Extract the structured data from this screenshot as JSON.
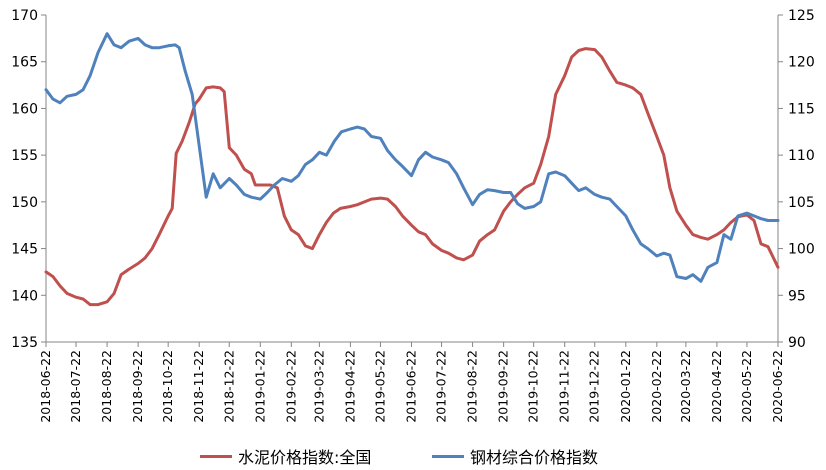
{
  "chart_data": {
    "type": "line",
    "title": "",
    "xlabel": "",
    "ylabel_left": "",
    "ylabel_right": "",
    "ylim_left": [
      135,
      170
    ],
    "ylim_right": [
      90,
      125
    ],
    "yticks_left": [
      "135",
      "140",
      "145",
      "150",
      "155",
      "160",
      "165",
      "170"
    ],
    "yticks_right": [
      "90",
      "95",
      "100",
      "105",
      "110",
      "115",
      "120",
      "125"
    ],
    "grid": false,
    "legend_position": "bottom",
    "x_tick_labels": [
      "2018-06-22",
      "2018-07-22",
      "2018-08-22",
      "2018-09-22",
      "2018-10-22",
      "2018-11-22",
      "2018-12-22",
      "2019-01-22",
      "2019-02-22",
      "2019-03-22",
      "2019-04-22",
      "2019-05-22",
      "2019-06-22",
      "2019-07-22",
      "2019-08-22",
      "2019-09-22",
      "2019-10-22",
      "2019-11-22",
      "2019-12-22",
      "2020-01-22",
      "2020-02-22",
      "2020-03-22",
      "2020-04-22",
      "2020-05-22",
      "2020-06-22"
    ],
    "series": [
      {
        "name": "水泥价格指数:全国",
        "axis": "left",
        "color": "#C0504D",
        "points": [
          [
            "2018-06-22",
            142.5
          ],
          [
            "2018-06-29",
            142.0
          ],
          [
            "2018-07-06",
            141.0
          ],
          [
            "2018-07-13",
            140.2
          ],
          [
            "2018-07-22",
            139.8
          ],
          [
            "2018-07-29",
            139.6
          ],
          [
            "2018-08-05",
            139.0
          ],
          [
            "2018-08-13",
            139.0
          ],
          [
            "2018-08-22",
            139.3
          ],
          [
            "2018-08-29",
            140.2
          ],
          [
            "2018-09-05",
            142.2
          ],
          [
            "2018-09-13",
            142.8
          ],
          [
            "2018-09-22",
            143.4
          ],
          [
            "2018-09-29",
            144.0
          ],
          [
            "2018-10-06",
            145.0
          ],
          [
            "2018-10-13",
            146.5
          ],
          [
            "2018-10-22",
            148.5
          ],
          [
            "2018-10-26",
            149.3
          ],
          [
            "2018-10-30",
            155.2
          ],
          [
            "2018-11-05",
            156.5
          ],
          [
            "2018-11-12",
            158.5
          ],
          [
            "2018-11-18",
            160.5
          ],
          [
            "2018-11-22",
            161.0
          ],
          [
            "2018-11-29",
            162.2
          ],
          [
            "2018-12-06",
            162.3
          ],
          [
            "2018-12-13",
            162.2
          ],
          [
            "2018-12-17",
            161.8
          ],
          [
            "2018-12-22",
            155.8
          ],
          [
            "2018-12-29",
            155.0
          ],
          [
            "2019-01-06",
            153.5
          ],
          [
            "2019-01-13",
            153.0
          ],
          [
            "2019-01-17",
            151.8
          ],
          [
            "2019-01-22",
            151.8
          ],
          [
            "2019-02-01",
            151.8
          ],
          [
            "2019-02-08",
            151.5
          ],
          [
            "2019-02-15",
            148.5
          ],
          [
            "2019-02-22",
            147.0
          ],
          [
            "2019-03-01",
            146.5
          ],
          [
            "2019-03-08",
            145.3
          ],
          [
            "2019-03-15",
            145.0
          ],
          [
            "2019-03-22",
            146.5
          ],
          [
            "2019-03-29",
            147.8
          ],
          [
            "2019-04-05",
            148.8
          ],
          [
            "2019-04-12",
            149.3
          ],
          [
            "2019-04-22",
            149.5
          ],
          [
            "2019-04-29",
            149.7
          ],
          [
            "2019-05-06",
            150.0
          ],
          [
            "2019-05-13",
            150.3
          ],
          [
            "2019-05-22",
            150.4
          ],
          [
            "2019-05-29",
            150.3
          ],
          [
            "2019-06-06",
            149.5
          ],
          [
            "2019-06-13",
            148.5
          ],
          [
            "2019-06-22",
            147.5
          ],
          [
            "2019-06-29",
            146.8
          ],
          [
            "2019-07-06",
            146.5
          ],
          [
            "2019-07-13",
            145.5
          ],
          [
            "2019-07-22",
            144.8
          ],
          [
            "2019-07-29",
            144.5
          ],
          [
            "2019-08-06",
            144.0
          ],
          [
            "2019-08-13",
            143.8
          ],
          [
            "2019-08-22",
            144.3
          ],
          [
            "2019-08-29",
            145.8
          ],
          [
            "2019-09-06",
            146.5
          ],
          [
            "2019-09-13",
            147.0
          ],
          [
            "2019-09-22",
            149.0
          ],
          [
            "2019-09-29",
            150.0
          ],
          [
            "2019-10-06",
            150.8
          ],
          [
            "2019-10-13",
            151.5
          ],
          [
            "2019-10-22",
            152.0
          ],
          [
            "2019-10-29",
            154.0
          ],
          [
            "2019-11-06",
            157.0
          ],
          [
            "2019-11-13",
            161.5
          ],
          [
            "2019-11-22",
            163.5
          ],
          [
            "2019-11-29",
            165.5
          ],
          [
            "2019-12-06",
            166.2
          ],
          [
            "2019-12-13",
            166.4
          ],
          [
            "2019-12-22",
            166.3
          ],
          [
            "2019-12-29",
            165.5
          ],
          [
            "2020-01-06",
            164.0
          ],
          [
            "2020-01-13",
            162.8
          ],
          [
            "2020-01-22",
            162.5
          ],
          [
            "2020-01-29",
            162.2
          ],
          [
            "2020-02-06",
            161.5
          ],
          [
            "2020-02-13",
            159.5
          ],
          [
            "2020-02-22",
            157.0
          ],
          [
            "2020-02-29",
            155.0
          ],
          [
            "2020-03-06",
            151.5
          ],
          [
            "2020-03-13",
            149.0
          ],
          [
            "2020-03-22",
            147.5
          ],
          [
            "2020-03-29",
            146.5
          ],
          [
            "2020-04-06",
            146.2
          ],
          [
            "2020-04-13",
            146.0
          ],
          [
            "2020-04-22",
            146.5
          ],
          [
            "2020-04-29",
            147.0
          ],
          [
            "2020-05-06",
            147.8
          ],
          [
            "2020-05-13",
            148.4
          ],
          [
            "2020-05-22",
            148.6
          ],
          [
            "2020-05-29",
            148.0
          ],
          [
            "2020-06-05",
            145.5
          ],
          [
            "2020-06-12",
            145.2
          ],
          [
            "2020-06-22",
            143.0
          ]
        ]
      },
      {
        "name": "钢材综合价格指数",
        "axis": "right",
        "color": "#4F81BD",
        "points": [
          [
            "2018-06-22",
            117.0
          ],
          [
            "2018-06-29",
            116.0
          ],
          [
            "2018-07-06",
            115.6
          ],
          [
            "2018-07-13",
            116.3
          ],
          [
            "2018-07-22",
            116.5
          ],
          [
            "2018-07-29",
            117.0
          ],
          [
            "2018-08-05",
            118.5
          ],
          [
            "2018-08-13",
            121.0
          ],
          [
            "2018-08-22",
            123.0
          ],
          [
            "2018-08-29",
            121.8
          ],
          [
            "2018-09-05",
            121.5
          ],
          [
            "2018-09-13",
            122.2
          ],
          [
            "2018-09-22",
            122.5
          ],
          [
            "2018-09-29",
            121.8
          ],
          [
            "2018-10-06",
            121.5
          ],
          [
            "2018-10-13",
            121.5
          ],
          [
            "2018-10-22",
            121.7
          ],
          [
            "2018-10-29",
            121.8
          ],
          [
            "2018-11-02",
            121.5
          ],
          [
            "2018-11-08",
            119.0
          ],
          [
            "2018-11-15",
            116.5
          ],
          [
            "2018-11-22",
            111.0
          ],
          [
            "2018-11-29",
            105.5
          ],
          [
            "2018-12-06",
            108.0
          ],
          [
            "2018-12-13",
            106.5
          ],
          [
            "2018-12-22",
            107.5
          ],
          [
            "2018-12-29",
            106.8
          ],
          [
            "2019-01-06",
            105.8
          ],
          [
            "2019-01-13",
            105.5
          ],
          [
            "2019-01-22",
            105.3
          ],
          [
            "2019-01-29",
            106.0
          ],
          [
            "2019-02-05",
            106.8
          ],
          [
            "2019-02-13",
            107.5
          ],
          [
            "2019-02-22",
            107.2
          ],
          [
            "2019-03-01",
            107.8
          ],
          [
            "2019-03-08",
            109.0
          ],
          [
            "2019-03-15",
            109.5
          ],
          [
            "2019-03-22",
            110.3
          ],
          [
            "2019-03-29",
            110.0
          ],
          [
            "2019-04-06",
            111.5
          ],
          [
            "2019-04-13",
            112.5
          ],
          [
            "2019-04-22",
            112.8
          ],
          [
            "2019-04-29",
            113.0
          ],
          [
            "2019-05-06",
            112.8
          ],
          [
            "2019-05-13",
            112.0
          ],
          [
            "2019-05-22",
            111.8
          ],
          [
            "2019-05-29",
            110.5
          ],
          [
            "2019-06-06",
            109.5
          ],
          [
            "2019-06-13",
            108.8
          ],
          [
            "2019-06-22",
            107.8
          ],
          [
            "2019-06-29",
            109.5
          ],
          [
            "2019-07-06",
            110.3
          ],
          [
            "2019-07-13",
            109.8
          ],
          [
            "2019-07-22",
            109.5
          ],
          [
            "2019-07-29",
            109.2
          ],
          [
            "2019-08-06",
            108.0
          ],
          [
            "2019-08-13",
            106.5
          ],
          [
            "2019-08-22",
            104.7
          ],
          [
            "2019-08-29",
            105.8
          ],
          [
            "2019-09-06",
            106.3
          ],
          [
            "2019-09-13",
            106.2
          ],
          [
            "2019-09-22",
            106.0
          ],
          [
            "2019-09-29",
            106.0
          ],
          [
            "2019-10-06",
            104.8
          ],
          [
            "2019-10-13",
            104.3
          ],
          [
            "2019-10-22",
            104.5
          ],
          [
            "2019-10-29",
            105.0
          ],
          [
            "2019-11-06",
            108.0
          ],
          [
            "2019-11-13",
            108.2
          ],
          [
            "2019-11-22",
            107.8
          ],
          [
            "2019-11-29",
            107.0
          ],
          [
            "2019-12-06",
            106.2
          ],
          [
            "2019-12-13",
            106.5
          ],
          [
            "2019-12-22",
            105.8
          ],
          [
            "2019-12-29",
            105.5
          ],
          [
            "2020-01-06",
            105.3
          ],
          [
            "2020-01-13",
            104.5
          ],
          [
            "2020-01-22",
            103.5
          ],
          [
            "2020-01-29",
            102.0
          ],
          [
            "2020-02-06",
            100.5
          ],
          [
            "2020-02-13",
            100.0
          ],
          [
            "2020-02-22",
            99.2
          ],
          [
            "2020-02-29",
            99.5
          ],
          [
            "2020-03-06",
            99.3
          ],
          [
            "2020-03-13",
            97.0
          ],
          [
            "2020-03-22",
            96.8
          ],
          [
            "2020-03-29",
            97.2
          ],
          [
            "2020-04-06",
            96.5
          ],
          [
            "2020-04-13",
            98.0
          ],
          [
            "2020-04-22",
            98.5
          ],
          [
            "2020-04-29",
            101.5
          ],
          [
            "2020-05-06",
            101.0
          ],
          [
            "2020-05-13",
            103.5
          ],
          [
            "2020-05-22",
            103.8
          ],
          [
            "2020-05-29",
            103.5
          ],
          [
            "2020-06-05",
            103.2
          ],
          [
            "2020-06-12",
            103.0
          ],
          [
            "2020-06-22",
            103.0
          ]
        ]
      }
    ]
  }
}
